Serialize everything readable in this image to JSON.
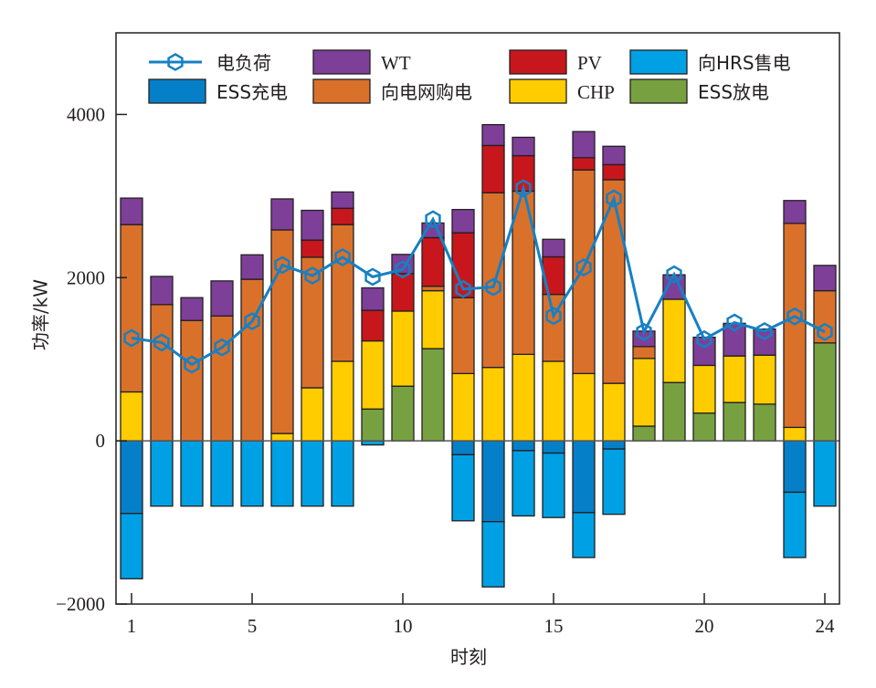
{
  "chart_data": {
    "type": "bar",
    "subtype": "stacked-bar-with-line",
    "title": "",
    "xlabel": "时刻",
    "ylabel": "功率/kW",
    "ylim": [
      -2000,
      5000
    ],
    "xlim": [
      0.5,
      24.5
    ],
    "yticks": [
      -2000,
      0,
      2000,
      4000
    ],
    "ytick_labels": [
      "−2000",
      "0",
      "2000",
      "4000"
    ],
    "xticks": [
      1,
      5,
      10,
      15,
      20,
      24
    ],
    "xtick_labels": [
      "1",
      "5",
      "10",
      "15",
      "20",
      "24"
    ],
    "grid": false,
    "zero_line": true,
    "legend_placement": "top-inside",
    "x": [
      1,
      2,
      3,
      4,
      5,
      6,
      7,
      8,
      9,
      10,
      11,
      12,
      13,
      14,
      15,
      16,
      17,
      18,
      19,
      20,
      21,
      22,
      23,
      24
    ],
    "positive_stack_order": [
      "ESS放电",
      "CHP",
      "向电网购电",
      "PV",
      "WT"
    ],
    "negative_stack_order": [
      "ESS充电",
      "向HRS售电"
    ],
    "series": [
      {
        "name": "ESS放电",
        "key": "ess_discharge",
        "color": "#77A141",
        "sign": "positive",
        "values": [
          0,
          0,
          0,
          0,
          0,
          0,
          0,
          0,
          390,
          670,
          1130,
          0,
          0,
          0,
          0,
          0,
          0,
          180,
          715,
          340,
          470,
          450,
          0,
          1200
        ]
      },
      {
        "name": "CHP",
        "key": "chp",
        "color": "#FFCC00",
        "sign": "positive",
        "values": [
          600,
          0,
          0,
          0,
          0,
          90,
          650,
          975,
          835,
          920,
          710,
          825,
          900,
          1060,
          975,
          825,
          705,
          830,
          1020,
          585,
          570,
          600,
          165,
          0
        ]
      },
      {
        "name": "向电网购电",
        "key": "grid_buy",
        "color": "#D9712B",
        "sign": "positive",
        "values": [
          2050,
          1670,
          1475,
          1530,
          1980,
          2495,
          1600,
          1675,
          0,
          0,
          55,
          930,
          2140,
          2000,
          820,
          2495,
          2495,
          145,
          0,
          0,
          0,
          0,
          2500,
          640
        ]
      },
      {
        "name": "PV",
        "key": "pv",
        "color": "#C8161D",
        "sign": "positive",
        "values": [
          0,
          0,
          0,
          0,
          0,
          0,
          210,
          200,
          375,
          460,
          595,
          795,
          580,
          435,
          460,
          150,
          185,
          0,
          0,
          0,
          0,
          0,
          0,
          0
        ]
      },
      {
        "name": "WT",
        "key": "wt",
        "color": "#7E3F98",
        "sign": "positive",
        "values": [
          325,
          345,
          280,
          430,
          300,
          380,
          365,
          200,
          275,
          235,
          180,
          285,
          255,
          225,
          215,
          320,
          225,
          190,
          300,
          345,
          400,
          320,
          280,
          310
        ]
      },
      {
        "name": "ESS充电",
        "key": "ess_charge",
        "color": "#0580C8",
        "sign": "negative",
        "values": [
          -890,
          0,
          0,
          0,
          0,
          0,
          0,
          0,
          0,
          0,
          0,
          -170,
          -990,
          -120,
          -150,
          -880,
          -100,
          0,
          0,
          0,
          0,
          0,
          -630,
          0
        ]
      },
      {
        "name": "向HRS售电",
        "key": "hrs_sell",
        "color": "#00A0E4",
        "sign": "negative",
        "values": [
          -800,
          -800,
          -800,
          -800,
          -800,
          -800,
          -800,
          -800,
          -50,
          0,
          0,
          -810,
          -800,
          -800,
          -790,
          -550,
          -800,
          0,
          0,
          0,
          0,
          0,
          -800,
          -800
        ]
      },
      {
        "name": "电负荷",
        "key": "load",
        "color": "#1680C4",
        "type": "line",
        "marker": "hexagon",
        "values": [
          1260,
          1205,
          935,
          1145,
          1465,
          2155,
          2025,
          2250,
          2010,
          2100,
          2715,
          1860,
          1885,
          3095,
          1530,
          2125,
          2970,
          1335,
          2040,
          1245,
          1450,
          1345,
          1525,
          1335
        ]
      }
    ],
    "legend": [
      {
        "label": "电负荷",
        "key": "load"
      },
      {
        "label": "WT",
        "key": "wt"
      },
      {
        "label": "PV",
        "key": "pv"
      },
      {
        "label": "向HRS售电",
        "key": "hrs_sell"
      },
      {
        "label": "ESS充电",
        "key": "ess_charge"
      },
      {
        "label": "向电网购电",
        "key": "grid_buy"
      },
      {
        "label": "CHP",
        "key": "chp"
      },
      {
        "label": "ESS放电",
        "key": "ess_discharge"
      }
    ]
  }
}
